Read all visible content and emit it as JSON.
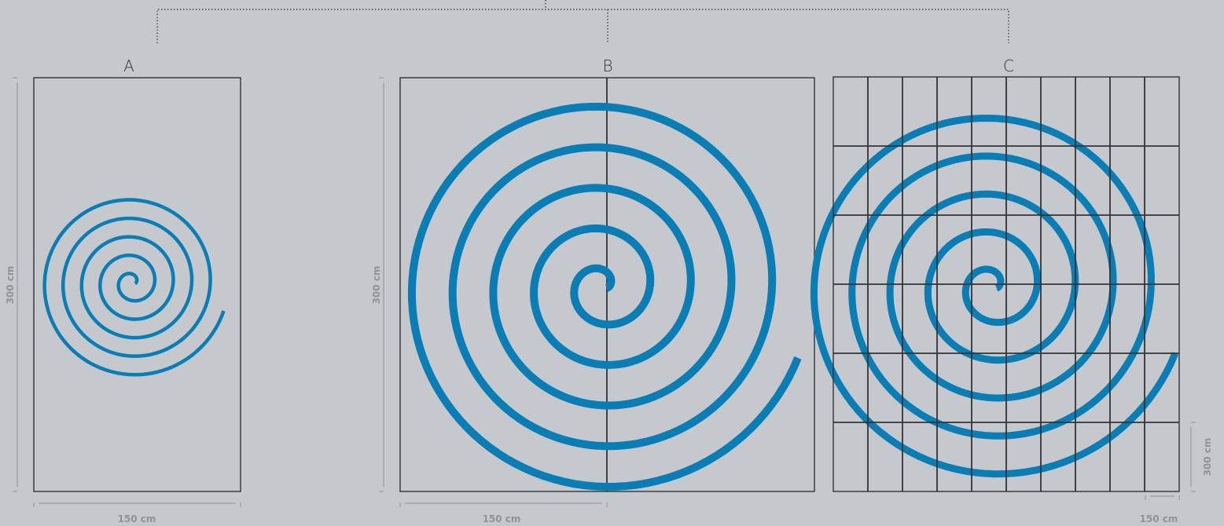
{
  "colors": {
    "spiral": "#0a7db5",
    "background": "#c5c8cc"
  },
  "panels": [
    {
      "id": "a",
      "label": "A",
      "width_label": "150 cm",
      "height_label": "300 cm",
      "turns": 5
    },
    {
      "id": "b",
      "label": "B",
      "width_label": "150 cm",
      "height_label": "300 cm",
      "turns": 5
    },
    {
      "id": "c",
      "label": "C",
      "width_label": "150 cm",
      "height_label": "300 cm",
      "turns": 5,
      "grid_columns": 10,
      "grid_rows": 6
    }
  ]
}
